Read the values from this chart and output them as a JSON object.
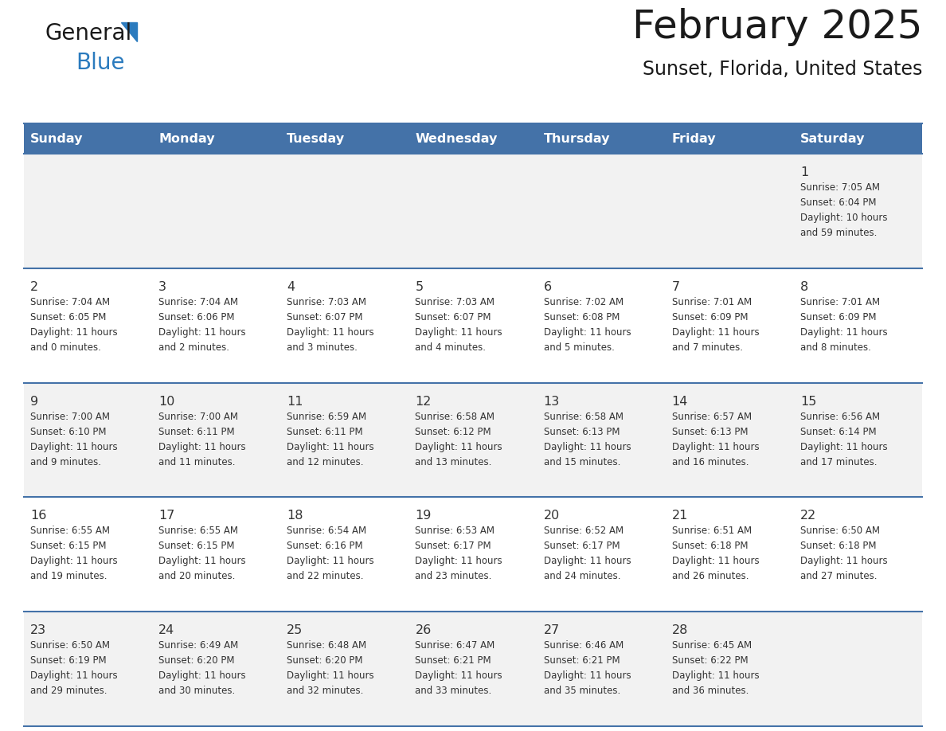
{
  "title": "February 2025",
  "subtitle": "Sunset, Florida, United States",
  "header_bg": "#4472A8",
  "header_text_color": "#FFFFFF",
  "day_names": [
    "Sunday",
    "Monday",
    "Tuesday",
    "Wednesday",
    "Thursday",
    "Friday",
    "Saturday"
  ],
  "cell_bg_even": "#F2F2F2",
  "cell_bg_odd": "#FFFFFF",
  "row_line_color": "#4472A8",
  "text_color": "#333333",
  "date_color": "#333333",
  "logo_general_color": "#1a1a1a",
  "logo_blue_color": "#2B7BBE",
  "calendar": [
    [
      {
        "day": null,
        "info": null
      },
      {
        "day": null,
        "info": null
      },
      {
        "day": null,
        "info": null
      },
      {
        "day": null,
        "info": null
      },
      {
        "day": null,
        "info": null
      },
      {
        "day": null,
        "info": null
      },
      {
        "day": 1,
        "info": "Sunrise: 7:05 AM\nSunset: 6:04 PM\nDaylight: 10 hours\nand 59 minutes."
      }
    ],
    [
      {
        "day": 2,
        "info": "Sunrise: 7:04 AM\nSunset: 6:05 PM\nDaylight: 11 hours\nand 0 minutes."
      },
      {
        "day": 3,
        "info": "Sunrise: 7:04 AM\nSunset: 6:06 PM\nDaylight: 11 hours\nand 2 minutes."
      },
      {
        "day": 4,
        "info": "Sunrise: 7:03 AM\nSunset: 6:07 PM\nDaylight: 11 hours\nand 3 minutes."
      },
      {
        "day": 5,
        "info": "Sunrise: 7:03 AM\nSunset: 6:07 PM\nDaylight: 11 hours\nand 4 minutes."
      },
      {
        "day": 6,
        "info": "Sunrise: 7:02 AM\nSunset: 6:08 PM\nDaylight: 11 hours\nand 5 minutes."
      },
      {
        "day": 7,
        "info": "Sunrise: 7:01 AM\nSunset: 6:09 PM\nDaylight: 11 hours\nand 7 minutes."
      },
      {
        "day": 8,
        "info": "Sunrise: 7:01 AM\nSunset: 6:09 PM\nDaylight: 11 hours\nand 8 minutes."
      }
    ],
    [
      {
        "day": 9,
        "info": "Sunrise: 7:00 AM\nSunset: 6:10 PM\nDaylight: 11 hours\nand 9 minutes."
      },
      {
        "day": 10,
        "info": "Sunrise: 7:00 AM\nSunset: 6:11 PM\nDaylight: 11 hours\nand 11 minutes."
      },
      {
        "day": 11,
        "info": "Sunrise: 6:59 AM\nSunset: 6:11 PM\nDaylight: 11 hours\nand 12 minutes."
      },
      {
        "day": 12,
        "info": "Sunrise: 6:58 AM\nSunset: 6:12 PM\nDaylight: 11 hours\nand 13 minutes."
      },
      {
        "day": 13,
        "info": "Sunrise: 6:58 AM\nSunset: 6:13 PM\nDaylight: 11 hours\nand 15 minutes."
      },
      {
        "day": 14,
        "info": "Sunrise: 6:57 AM\nSunset: 6:13 PM\nDaylight: 11 hours\nand 16 minutes."
      },
      {
        "day": 15,
        "info": "Sunrise: 6:56 AM\nSunset: 6:14 PM\nDaylight: 11 hours\nand 17 minutes."
      }
    ],
    [
      {
        "day": 16,
        "info": "Sunrise: 6:55 AM\nSunset: 6:15 PM\nDaylight: 11 hours\nand 19 minutes."
      },
      {
        "day": 17,
        "info": "Sunrise: 6:55 AM\nSunset: 6:15 PM\nDaylight: 11 hours\nand 20 minutes."
      },
      {
        "day": 18,
        "info": "Sunrise: 6:54 AM\nSunset: 6:16 PM\nDaylight: 11 hours\nand 22 minutes."
      },
      {
        "day": 19,
        "info": "Sunrise: 6:53 AM\nSunset: 6:17 PM\nDaylight: 11 hours\nand 23 minutes."
      },
      {
        "day": 20,
        "info": "Sunrise: 6:52 AM\nSunset: 6:17 PM\nDaylight: 11 hours\nand 24 minutes."
      },
      {
        "day": 21,
        "info": "Sunrise: 6:51 AM\nSunset: 6:18 PM\nDaylight: 11 hours\nand 26 minutes."
      },
      {
        "day": 22,
        "info": "Sunrise: 6:50 AM\nSunset: 6:18 PM\nDaylight: 11 hours\nand 27 minutes."
      }
    ],
    [
      {
        "day": 23,
        "info": "Sunrise: 6:50 AM\nSunset: 6:19 PM\nDaylight: 11 hours\nand 29 minutes."
      },
      {
        "day": 24,
        "info": "Sunrise: 6:49 AM\nSunset: 6:20 PM\nDaylight: 11 hours\nand 30 minutes."
      },
      {
        "day": 25,
        "info": "Sunrise: 6:48 AM\nSunset: 6:20 PM\nDaylight: 11 hours\nand 32 minutes."
      },
      {
        "day": 26,
        "info": "Sunrise: 6:47 AM\nSunset: 6:21 PM\nDaylight: 11 hours\nand 33 minutes."
      },
      {
        "day": 27,
        "info": "Sunrise: 6:46 AM\nSunset: 6:21 PM\nDaylight: 11 hours\nand 35 minutes."
      },
      {
        "day": 28,
        "info": "Sunrise: 6:45 AM\nSunset: 6:22 PM\nDaylight: 11 hours\nand 36 minutes."
      },
      {
        "day": null,
        "info": null
      }
    ]
  ]
}
